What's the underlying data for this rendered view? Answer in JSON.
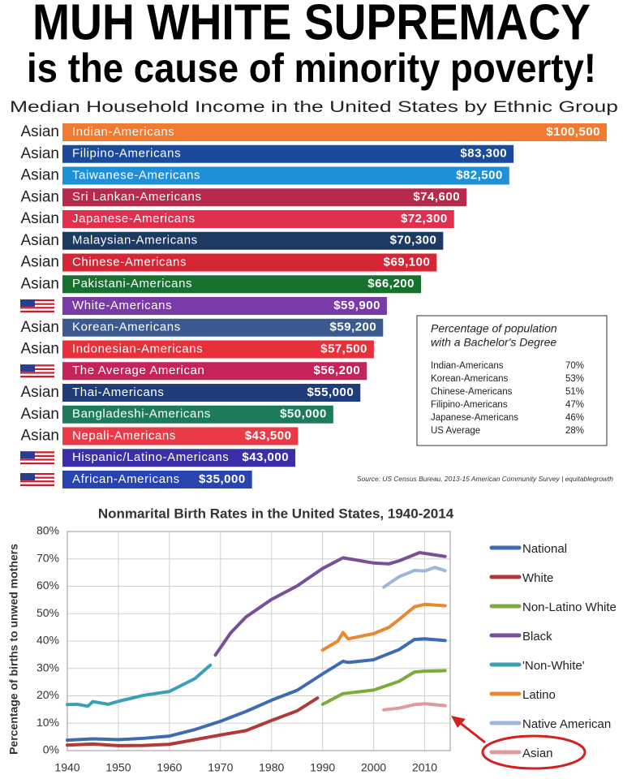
{
  "header": {
    "title": "MUH WHITE SUPREMACY",
    "subtitle": "is the cause of minority poverty!"
  },
  "chart_data": [
    {
      "type": "bar",
      "title": "Median Household Income in the United States  by Ethnic Group",
      "groups": [
        "Asian",
        "Asian",
        "Asian",
        "Asian",
        "Asian",
        "Asian",
        "Asian",
        "Asian",
        null,
        "Asian",
        "Asian",
        null,
        "Asian",
        "Asian",
        "Asian",
        null,
        null
      ],
      "categories": [
        "Indian-Americans",
        "Filipino-Americans",
        "Taiwanese-Americans",
        "Sri Lankan-Americans",
        "Japanese-Americans",
        "Malaysian-Americans",
        "Chinese-Americans",
        "Pakistani-Americans",
        "White-Americans",
        "Korean-Americans",
        "Indonesian-Americans",
        "The Average American",
        "Thai-Americans",
        "Bangladeshi-Americans",
        "Nepali-Americans",
        "Hispanic/Latino-Americans",
        "African-Americans"
      ],
      "values": [
        100500,
        83300,
        82500,
        74600,
        72300,
        70300,
        69100,
        66200,
        59900,
        59200,
        57500,
        56200,
        55000,
        50000,
        43500,
        43000,
        35000
      ],
      "value_labels": [
        "$100,500",
        "$83,300",
        "$82,500",
        "$74,600",
        "$72,300",
        "$70,300",
        "$69,100",
        "$66,200",
        "$59,900",
        "$59,200",
        "$57,500",
        "$56,200",
        "$55,000",
        "$50,000",
        "$43,500",
        "$43,000",
        "$35,000"
      ],
      "colors": [
        "#f07a30",
        "#1a4a9c",
        "#1e90d8",
        "#b82a4a",
        "#e0304e",
        "#1c3a62",
        "#d62535",
        "#16712f",
        "#7a3aa8",
        "#3b5a8f",
        "#e8303a",
        "#c42458",
        "#1f3d7a",
        "#1d7a5a",
        "#ea3a48",
        "#3a2fa8",
        "#2844b0"
      ]
    },
    {
      "type": "line",
      "title": "Nonmarital Birth Rates in the United States, 1940-2014",
      "ylabel": "Percentage of births to unwed mothers",
      "xlim": [
        1940,
        2015
      ],
      "xticks": [
        1940,
        1950,
        1960,
        1970,
        1980,
        1990,
        2000,
        2010
      ],
      "ylim": [
        0,
        80
      ],
      "yticks": [
        {
          "value": 0,
          "label": "0%"
        },
        {
          "value": 10,
          "label": "10%"
        },
        {
          "value": 20,
          "label": "20%"
        },
        {
          "value": 30,
          "label": "30%"
        },
        {
          "value": 40,
          "label": "40%"
        },
        {
          "value": 50,
          "label": "50%"
        },
        {
          "value": 60,
          "label": "60%"
        },
        {
          "value": 70,
          "label": "70%"
        },
        {
          "value": 80,
          "label": "80%"
        }
      ],
      "grid": true,
      "legend": "right",
      "series": [
        {
          "name": "National",
          "color": "#3f6bb0",
          "x": [
            1940,
            1945,
            1950,
            1955,
            1960,
            1965,
            1970,
            1975,
            1980,
            1985,
            1990,
            1994,
            1995,
            2000,
            2005,
            2008,
            2010,
            2014
          ],
          "values": [
            3.8,
            4.3,
            4.0,
            4.5,
            5.3,
            7.7,
            10.7,
            14.3,
            18.4,
            22.0,
            28.0,
            32.6,
            32.2,
            33.2,
            36.9,
            40.6,
            40.8,
            40.2
          ]
        },
        {
          "name": "White",
          "color": "#b03a3a",
          "x": [
            1940,
            1945,
            1950,
            1955,
            1960,
            1965,
            1970,
            1975,
            1980,
            1985,
            1989
          ],
          "values": [
            2.0,
            2.4,
            1.8,
            1.9,
            2.3,
            4.0,
            5.7,
            7.3,
            11.0,
            14.5,
            19.2
          ]
        },
        {
          "name": "Non-Latino White",
          "color": "#7cab3c",
          "x": [
            1990,
            1994,
            2000,
            2005,
            2008,
            2010,
            2014
          ],
          "values": [
            16.9,
            20.8,
            22.1,
            25.3,
            28.7,
            29.0,
            29.2
          ]
        },
        {
          "name": "Black",
          "color": "#7a4f9a",
          "x": [
            1969,
            1972,
            1975,
            1980,
            1985,
            1990,
            1994,
            2000,
            2003,
            2005,
            2009,
            2014
          ],
          "values": [
            34.9,
            43.0,
            48.8,
            55.2,
            60.1,
            66.5,
            70.4,
            68.5,
            68.2,
            69.3,
            72.3,
            70.9
          ]
        },
        {
          "name": "'Non-White'",
          "color": "#3aa0b5",
          "x": [
            1940,
            1942,
            1944,
            1945,
            1948,
            1950,
            1955,
            1960,
            1965,
            1968
          ],
          "values": [
            16.8,
            16.9,
            16.2,
            17.9,
            16.9,
            18.0,
            20.2,
            21.6,
            26.3,
            31.2
          ]
        },
        {
          "name": "Latino",
          "color": "#e8892f",
          "x": [
            1990,
            1993,
            1994,
            1995,
            2000,
            2003,
            2005,
            2008,
            2010,
            2014
          ],
          "values": [
            36.7,
            40.0,
            43.1,
            40.8,
            42.7,
            45.0,
            47.9,
            52.5,
            53.4,
            52.9
          ]
        },
        {
          "name": "Native American",
          "color": "#9db6de",
          "x": [
            2002,
            2005,
            2008,
            2010,
            2012,
            2014
          ],
          "values": [
            59.7,
            63.5,
            65.8,
            65.6,
            66.9,
            65.7
          ]
        },
        {
          "name": "Asian",
          "color": "#e3999a",
          "x": [
            2002,
            2005,
            2008,
            2010,
            2014
          ],
          "values": [
            14.9,
            15.5,
            16.8,
            17.1,
            16.4
          ]
        }
      ]
    }
  ],
  "inset": {
    "title": [
      "Percentage of population",
      "with a Bachelor's Degree"
    ],
    "rows": [
      [
        "Indian-Americans",
        "70%"
      ],
      [
        "Korean-Americans",
        "53%"
      ],
      [
        "Chinese-Americans",
        "51%"
      ],
      [
        "Filipino-Americans",
        "47%"
      ],
      [
        "Japanese-Americans",
        "46%"
      ],
      [
        "US Average",
        "28%"
      ]
    ]
  },
  "source": "Source: US Census Bureau, 2013-15 American Community Survey | equitablegrowth"
}
